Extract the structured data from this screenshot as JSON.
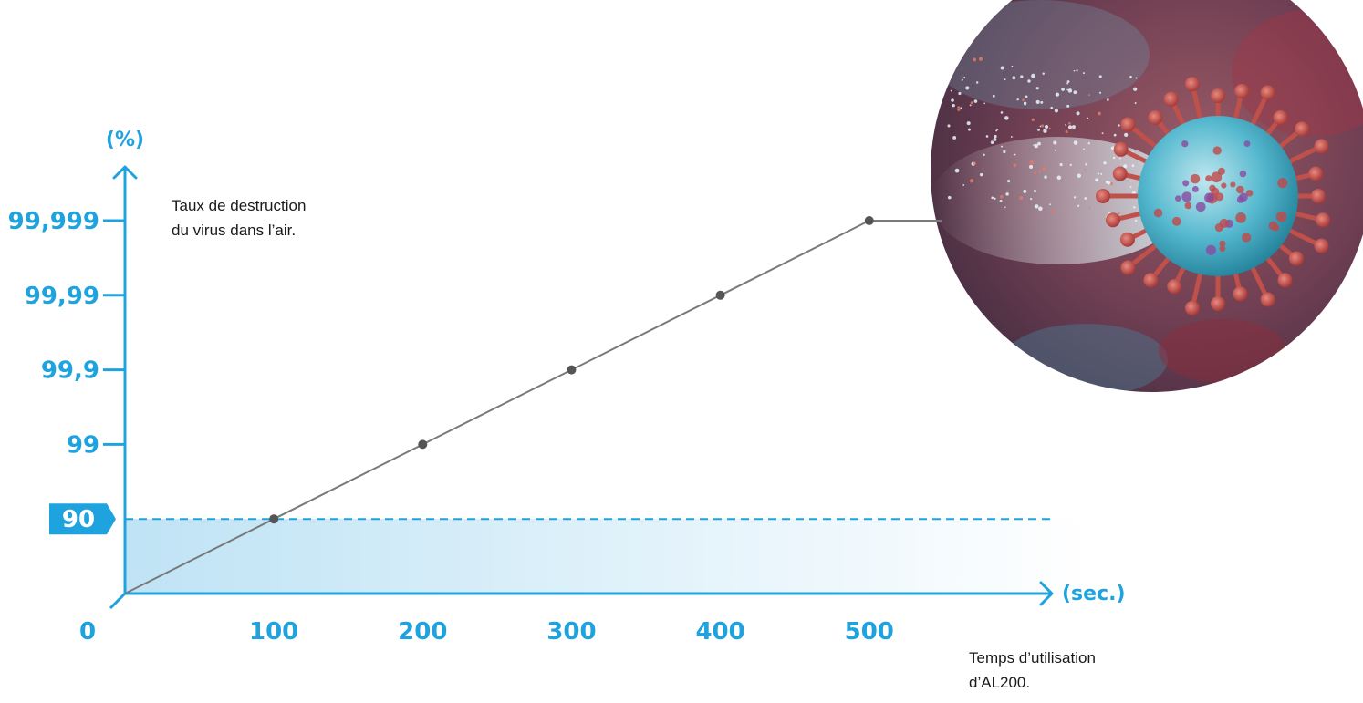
{
  "chart_data": {
    "type": "line",
    "x": [
      0,
      100,
      200,
      300,
      400,
      500
    ],
    "y": [
      "0",
      "90",
      "99",
      "99,9",
      "99,99",
      "99,999"
    ],
    "y_levels": [
      0,
      1,
      2,
      3,
      4,
      5
    ],
    "x_ticks": [
      "0",
      "100",
      "200",
      "300",
      "400",
      "500"
    ],
    "y_ticks": [
      "99",
      "99,9",
      "99,99",
      "99,999"
    ],
    "highlight_tick": "90",
    "highlight_level": 1,
    "xlabel": "(sec.)",
    "ylabel": "(%)",
    "xlim": [
      0,
      600
    ],
    "plateau_after": 500,
    "colors": {
      "axis": "#1fa3de",
      "line": "#7a7a7a",
      "point": "#555555",
      "band_start": "#bfe3f5",
      "band_end": "#ffffff"
    }
  },
  "notes": {
    "y_caption_line1": "Taux de destruction",
    "y_caption_line2": "du virus dans l’air.",
    "x_caption_line1": "Temps d’utilisation",
    "x_caption_line2": "d’AL200."
  },
  "image": {
    "subject": "virus-illustration"
  }
}
